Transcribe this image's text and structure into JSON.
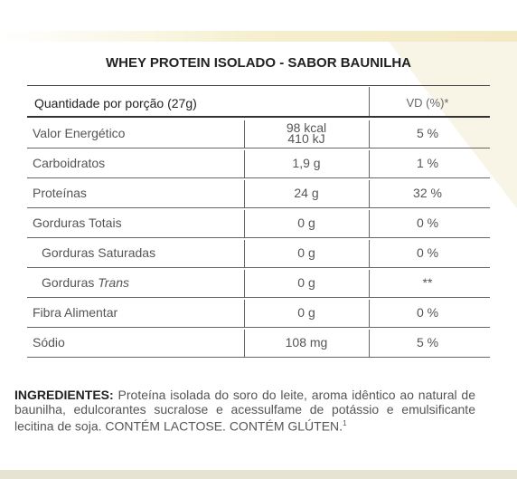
{
  "title": "WHEY PROTEIN ISOLADO - SABOR BAUNILHA",
  "header": {
    "serving": "Quantidade por porção (27g)",
    "vd": "VD (%)*"
  },
  "rows": [
    {
      "name": "Valor Energético",
      "amount": [
        "98 kcal",
        "410 kJ"
      ],
      "vd": "5 %"
    },
    {
      "name": "Carboidratos",
      "amount": [
        "1,9 g"
      ],
      "vd": "1 %"
    },
    {
      "name": "Proteínas",
      "amount": [
        "24 g"
      ],
      "vd": "32 %"
    },
    {
      "name": "Gorduras Totais",
      "amount": [
        "0 g"
      ],
      "vd": "0 %"
    },
    {
      "name": "Gorduras Saturadas",
      "amount": [
        "0 g"
      ],
      "vd": "0 %",
      "sub": true
    },
    {
      "name": "Gorduras",
      "name_italic": "Trans",
      "amount": [
        "0 g"
      ],
      "vd": "**",
      "sub": true
    },
    {
      "name": "Fibra Alimentar",
      "amount": [
        "0 g"
      ],
      "vd": "0 %"
    },
    {
      "name": "Sódio",
      "amount": [
        "108 mg"
      ],
      "vd": "5 %"
    }
  ],
  "ingredients": {
    "label": "INGREDIENTES:",
    "text": "Proteína isolada do soro do leite, aroma idêntico ao natural de baunilha, edulcorantes sucralose e acessulfame de potássio e emulsificante lecitina de soja. CONTÉM LACTOSE. CONTÉM GLÚTEN.",
    "note": "1"
  }
}
